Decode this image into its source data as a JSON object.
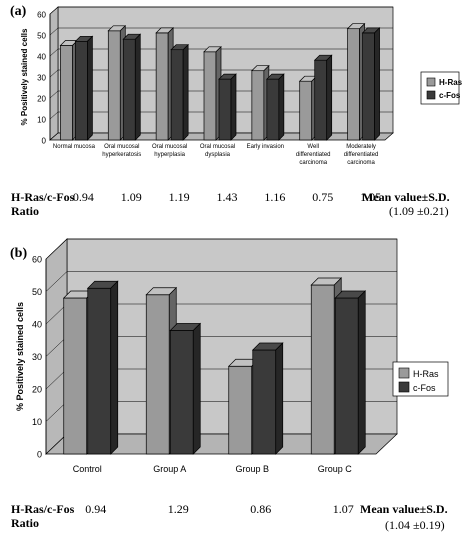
{
  "panel_a": {
    "letter": "(a)",
    "ratio_label_line1": "H-Ras/c-Fos",
    "ratio_label_line2": "Ratio",
    "ratios": [
      "0.94",
      "1.09",
      "1.19",
      "1.43",
      "1.16",
      "0.75",
      "1.05"
    ],
    "mean_label": "Mean value±S.D.",
    "mean_value": "(1.09 ±0.21)"
  },
  "panel_b": {
    "letter": "(b)",
    "ratio_label_line1": "H-Ras/c-Fos",
    "ratio_label_line2": "Ratio",
    "ratios": [
      "0.94",
      "1.29",
      "0.86",
      "1.07"
    ],
    "mean_label": "Mean value±S.D.",
    "mean_value": "(1.04 ±0.19)"
  },
  "colors": {
    "h_ras": "#9a9a9a",
    "c_fos": "#3a3a3a",
    "wall": "#c8c8c8",
    "floor": "#b4b4b4"
  },
  "chart_data": [
    {
      "type": "bar",
      "ylabel": "% Positively stained cells",
      "ylim": [
        0,
        60
      ],
      "yticks": [
        0,
        10,
        20,
        30,
        40,
        50,
        60
      ],
      "grid": true,
      "legend": "right",
      "categories": [
        [
          "Normal mucosa"
        ],
        [
          "Oral mucosal",
          "hyperkeratosis"
        ],
        [
          "Oral mucosal",
          "hyperplasia"
        ],
        [
          "Oral mucosal",
          "dysplasia"
        ],
        [
          "Early invasion"
        ],
        [
          "Well",
          "differentiated",
          "carcinoma"
        ],
        [
          "Moderately",
          "differentiated",
          "carcinoma"
        ]
      ],
      "series": [
        {
          "name": "H-Ras",
          "values": [
            45,
            52,
            51,
            42,
            33,
            28,
            53
          ]
        },
        {
          "name": "c-Fos",
          "values": [
            47,
            48,
            43,
            29,
            29,
            38,
            51
          ]
        }
      ]
    },
    {
      "type": "bar",
      "ylabel": "% Positively stained cells",
      "ylim": [
        0,
        60
      ],
      "yticks": [
        0,
        10,
        20,
        30,
        40,
        50,
        60
      ],
      "grid": true,
      "legend": "right",
      "categories": [
        [
          "Control"
        ],
        [
          "Group A"
        ],
        [
          "Group B"
        ],
        [
          "Group C"
        ]
      ],
      "series": [
        {
          "name": "H-Ras",
          "values": [
            48,
            49,
            27,
            52
          ]
        },
        {
          "name": "c-Fos",
          "values": [
            51,
            38,
            32,
            48
          ]
        }
      ]
    }
  ]
}
